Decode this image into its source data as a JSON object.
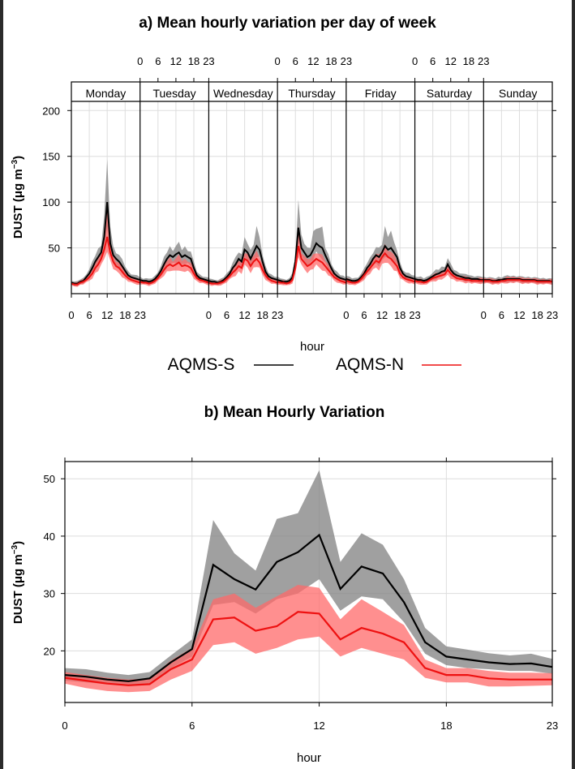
{
  "colors": {
    "aqms_s": "#000000",
    "aqms_n": "#ee1111",
    "band_s": "#808080",
    "band_n": "#ff6a6a",
    "grid": "#dddddd"
  },
  "chart_data": [
    {
      "type": "line",
      "title": "a) Mean hourly variation per day of week",
      "xlabel": "hour",
      "ylabel": "DUST (μg m⁻³)",
      "ylim": [
        0,
        210
      ],
      "yticks": [
        50,
        100,
        150,
        200
      ],
      "hour_ticks": [
        "0",
        "6",
        "12",
        "18",
        "23"
      ],
      "days": [
        "Monday",
        "Tuesday",
        "Wednesday",
        "Thursday",
        "Friday",
        "Saturday",
        "Sunday"
      ],
      "series": [
        {
          "name": "AQMS-S",
          "values": [
            [
              12,
              11,
              11,
              13,
              14,
              18,
              22,
              28,
              35,
              40,
              45,
              62,
              100,
              55,
              42,
              38,
              35,
              30,
              25,
              20,
              18,
              17,
              16,
              15
            ],
            [
              15,
              14,
              14,
              13,
              14,
              16,
              20,
              25,
              32,
              38,
              42,
              40,
              43,
              45,
              40,
              42,
              40,
              38,
              28,
              20,
              17,
              16,
              15,
              14
            ],
            [
              14,
              13,
              13,
              12,
              13,
              15,
              18,
              22,
              28,
              32,
              38,
              35,
              48,
              45,
              38,
              45,
              52,
              48,
              35,
              24,
              19,
              17,
              16,
              15
            ],
            [
              15,
              14,
              13,
              13,
              14,
              18,
              35,
              72,
              50,
              45,
              40,
              42,
              48,
              55,
              52,
              50,
              42,
              35,
              28,
              22,
              19,
              17,
              16,
              15
            ],
            [
              16,
              15,
              14,
              14,
              15,
              18,
              22,
              28,
              32,
              38,
              42,
              40,
              45,
              52,
              48,
              50,
              45,
              40,
              28,
              22,
              19,
              18,
              17,
              16
            ],
            [
              16,
              15,
              15,
              14,
              15,
              17,
              19,
              21,
              22,
              24,
              25,
              32,
              26,
              22,
              20,
              19,
              18,
              17,
              17,
              16,
              16,
              16,
              15,
              15
            ],
            [
              15,
              15,
              15,
              14,
              14,
              15,
              15,
              16,
              16,
              16,
              16,
              16,
              16,
              15,
              15,
              15,
              15,
              15,
              14,
              14,
              14,
              14,
              14,
              13
            ]
          ]
        },
        {
          "name": "AQMS-N",
          "values": [
            [
              11,
              10,
              10,
              12,
              13,
              15,
              18,
              22,
              28,
              32,
              38,
              48,
              62,
              45,
              35,
              30,
              28,
              24,
              20,
              17,
              15,
              14,
              13,
              12
            ],
            [
              13,
              12,
              12,
              11,
              12,
              14,
              17,
              21,
              26,
              30,
              32,
              30,
              32,
              34,
              30,
              31,
              30,
              28,
              22,
              17,
              15,
              14,
              13,
              12
            ],
            [
              12,
              11,
              11,
              11,
              12,
              13,
              16,
              19,
              23,
              26,
              30,
              28,
              38,
              36,
              30,
              35,
              38,
              34,
              26,
              20,
              16,
              14,
              13,
              12
            ],
            [
              13,
              12,
              12,
              11,
              12,
              15,
              28,
              52,
              38,
              34,
              30,
              32,
              35,
              38,
              36,
              34,
              30,
              26,
              22,
              18,
              16,
              14,
              13,
              12
            ],
            [
              14,
              13,
              12,
              12,
              13,
              16,
              20,
              24,
              28,
              32,
              36,
              34,
              40,
              44,
              40,
              38,
              34,
              30,
              22,
              18,
              16,
              15,
              14,
              13
            ],
            [
              14,
              13,
              13,
              12,
              13,
              15,
              17,
              18,
              19,
              20,
              21,
              26,
              22,
              19,
              17,
              16,
              16,
              15,
              15,
              14,
              14,
              14,
              14,
              14
            ],
            [
              14,
              14,
              14,
              13,
              13,
              13,
              14,
              14,
              15,
              15,
              15,
              15,
              15,
              14,
              14,
              14,
              14,
              14,
              13,
              13,
              13,
              13,
              13,
              13
            ]
          ]
        }
      ]
    },
    {
      "type": "line",
      "title": "b) Mean Hourly Variation",
      "xlabel": "hour",
      "ylabel": "DUST (μg m⁻³)",
      "ylim": [
        11,
        53
      ],
      "yticks": [
        20,
        30,
        40,
        50
      ],
      "xticks": [
        0,
        6,
        12,
        18,
        23
      ],
      "xlim": [
        0,
        23
      ],
      "x": [
        0,
        1,
        2,
        3,
        4,
        5,
        6,
        7,
        8,
        9,
        10,
        11,
        12,
        13,
        14,
        15,
        16,
        17,
        18,
        19,
        20,
        21,
        22,
        23
      ],
      "series": [
        {
          "name": "AQMS-S",
          "values": [
            15.8,
            15.5,
            15.0,
            14.7,
            15.2,
            18.0,
            20.3,
            35.0,
            32.5,
            30.7,
            35.5,
            37.2,
            40.2,
            30.8,
            34.7,
            33.5,
            28.5,
            21.5,
            19.0,
            18.5,
            18.0,
            17.7,
            17.8,
            17.2
          ],
          "lower": [
            14.8,
            14.5,
            14.2,
            13.9,
            14.3,
            17.0,
            19.0,
            28.0,
            28.5,
            26.5,
            29.0,
            30.0,
            32.5,
            27.0,
            29.5,
            29.0,
            25.0,
            19.5,
            17.5,
            17.0,
            16.8,
            16.5,
            16.5,
            16.0
          ],
          "upper": [
            17.0,
            16.8,
            16.2,
            15.8,
            16.3,
            19.2,
            22.0,
            42.8,
            37.0,
            34.0,
            43.0,
            44.0,
            51.5,
            35.5,
            40.5,
            38.5,
            32.5,
            24.0,
            20.8,
            20.2,
            19.6,
            19.2,
            19.5,
            18.6
          ]
        },
        {
          "name": "AQMS-N",
          "values": [
            15.3,
            14.8,
            14.3,
            14.0,
            14.2,
            16.8,
            18.5,
            25.5,
            25.8,
            23.5,
            24.3,
            26.8,
            26.5,
            22.0,
            24.0,
            23.0,
            21.5,
            17.0,
            15.8,
            15.8,
            15.2,
            15.0,
            15.0,
            15.0
          ],
          "lower": [
            14.3,
            13.5,
            13.0,
            12.8,
            13.0,
            15.0,
            16.5,
            21.0,
            21.5,
            19.5,
            20.5,
            22.0,
            22.5,
            19.0,
            20.5,
            19.5,
            18.5,
            15.3,
            14.5,
            14.5,
            13.8,
            13.8,
            13.9,
            14.0
          ],
          "upper": [
            16.3,
            15.8,
            15.3,
            15.0,
            15.2,
            18.3,
            20.5,
            29.0,
            30.0,
            27.5,
            29.5,
            31.5,
            31.0,
            25.5,
            29.0,
            26.8,
            24.5,
            18.5,
            17.0,
            17.0,
            16.5,
            16.2,
            16.2,
            16.1
          ]
        }
      ]
    }
  ],
  "legend": [
    {
      "name": "AQMS-S"
    },
    {
      "name": "AQMS-N"
    }
  ]
}
